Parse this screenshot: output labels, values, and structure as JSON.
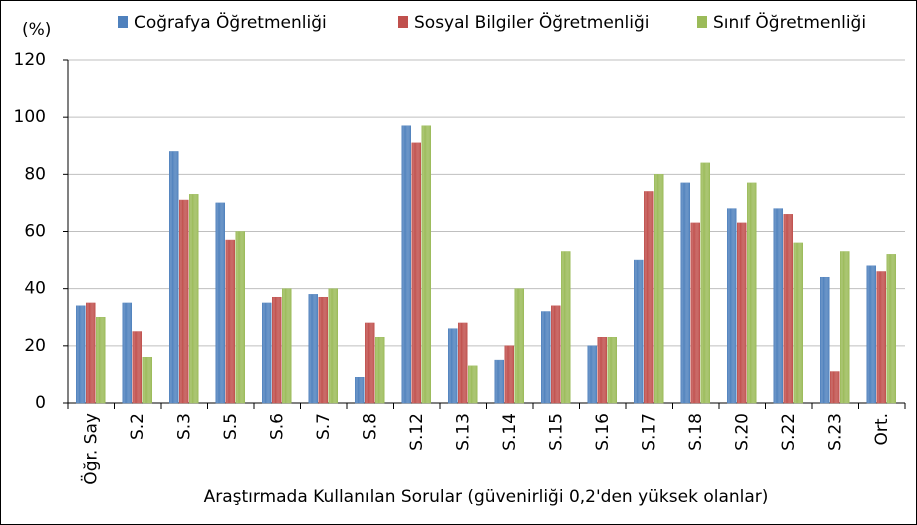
{
  "chart_data": {
    "type": "bar",
    "ylabel": "(%)",
    "xlabel": "Araştırmada Kullanılan Sorular (güvenirliği 0,2'den yüksek olanlar)",
    "categories": [
      "Öğr. Say",
      "S.2",
      "S.3",
      "S.5",
      "S.6",
      "S.7",
      "S.8",
      "S.12",
      "S.13",
      "S.14",
      "S.15",
      "S.16",
      "S.17",
      "S.18",
      "S.20",
      "S.22",
      "S.23",
      "Ort."
    ],
    "series": [
      {
        "name": "Coğrafya Öğretmenliği",
        "color": "#4f81bd",
        "values": [
          34,
          35,
          88,
          70,
          35,
          38,
          9,
          97,
          26,
          15,
          32,
          20,
          50,
          77,
          68,
          68,
          44,
          48
        ]
      },
      {
        "name": "Sosyal Bilgiler Öğretmenliği",
        "color": "#c0504d",
        "values": [
          35,
          25,
          71,
          57,
          37,
          37,
          28,
          91,
          28,
          20,
          34,
          23,
          74,
          63,
          63,
          66,
          11,
          46
        ]
      },
      {
        "name": "Sınıf Öğretmenliği",
        "color": "#9bbb59",
        "values": [
          30,
          16,
          73,
          60,
          40,
          40,
          23,
          97,
          13,
          40,
          53,
          23,
          80,
          84,
          77,
          56,
          53,
          52
        ]
      }
    ],
    "ylim": [
      0,
      120
    ],
    "yticks": [
      0,
      20,
      40,
      60,
      80,
      100,
      120
    ],
    "grid": true
  }
}
